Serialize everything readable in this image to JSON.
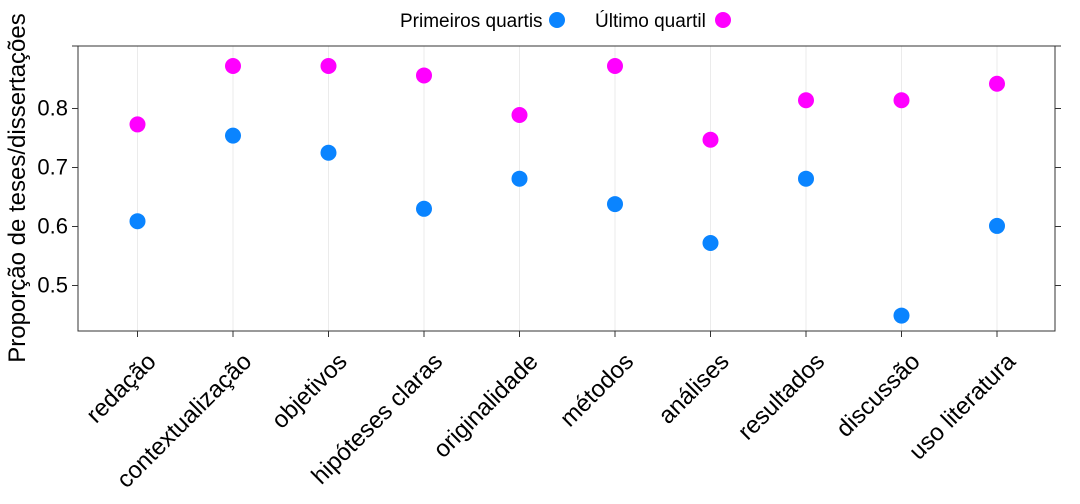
{
  "chart_data": {
    "type": "scatter",
    "title": "",
    "xlabel": "",
    "ylabel": "Proporção de teses/dissertações",
    "categories": [
      "redação",
      "contextualização",
      "objetivos",
      "hipóteses claras",
      "originalidade",
      "métodos",
      "análises",
      "resultados",
      "discussão",
      "uso literatura"
    ],
    "series": [
      {
        "name": "Primeiros quartis",
        "color": "#0A84FF",
        "values": [
          0.609,
          0.754,
          0.725,
          0.63,
          0.681,
          0.638,
          0.572,
          0.681,
          0.449,
          0.601
        ]
      },
      {
        "name": "Último quartil",
        "color": "#FF00FF",
        "values": [
          0.773,
          0.872,
          0.872,
          0.856,
          0.789,
          0.872,
          0.747,
          0.814,
          0.814,
          0.842
        ]
      }
    ],
    "ylim": [
      0.42,
      0.9
    ],
    "yticks": [
      0.5,
      0.6,
      0.7,
      0.8
    ],
    "grid": "vertical",
    "legend_position": "top"
  }
}
